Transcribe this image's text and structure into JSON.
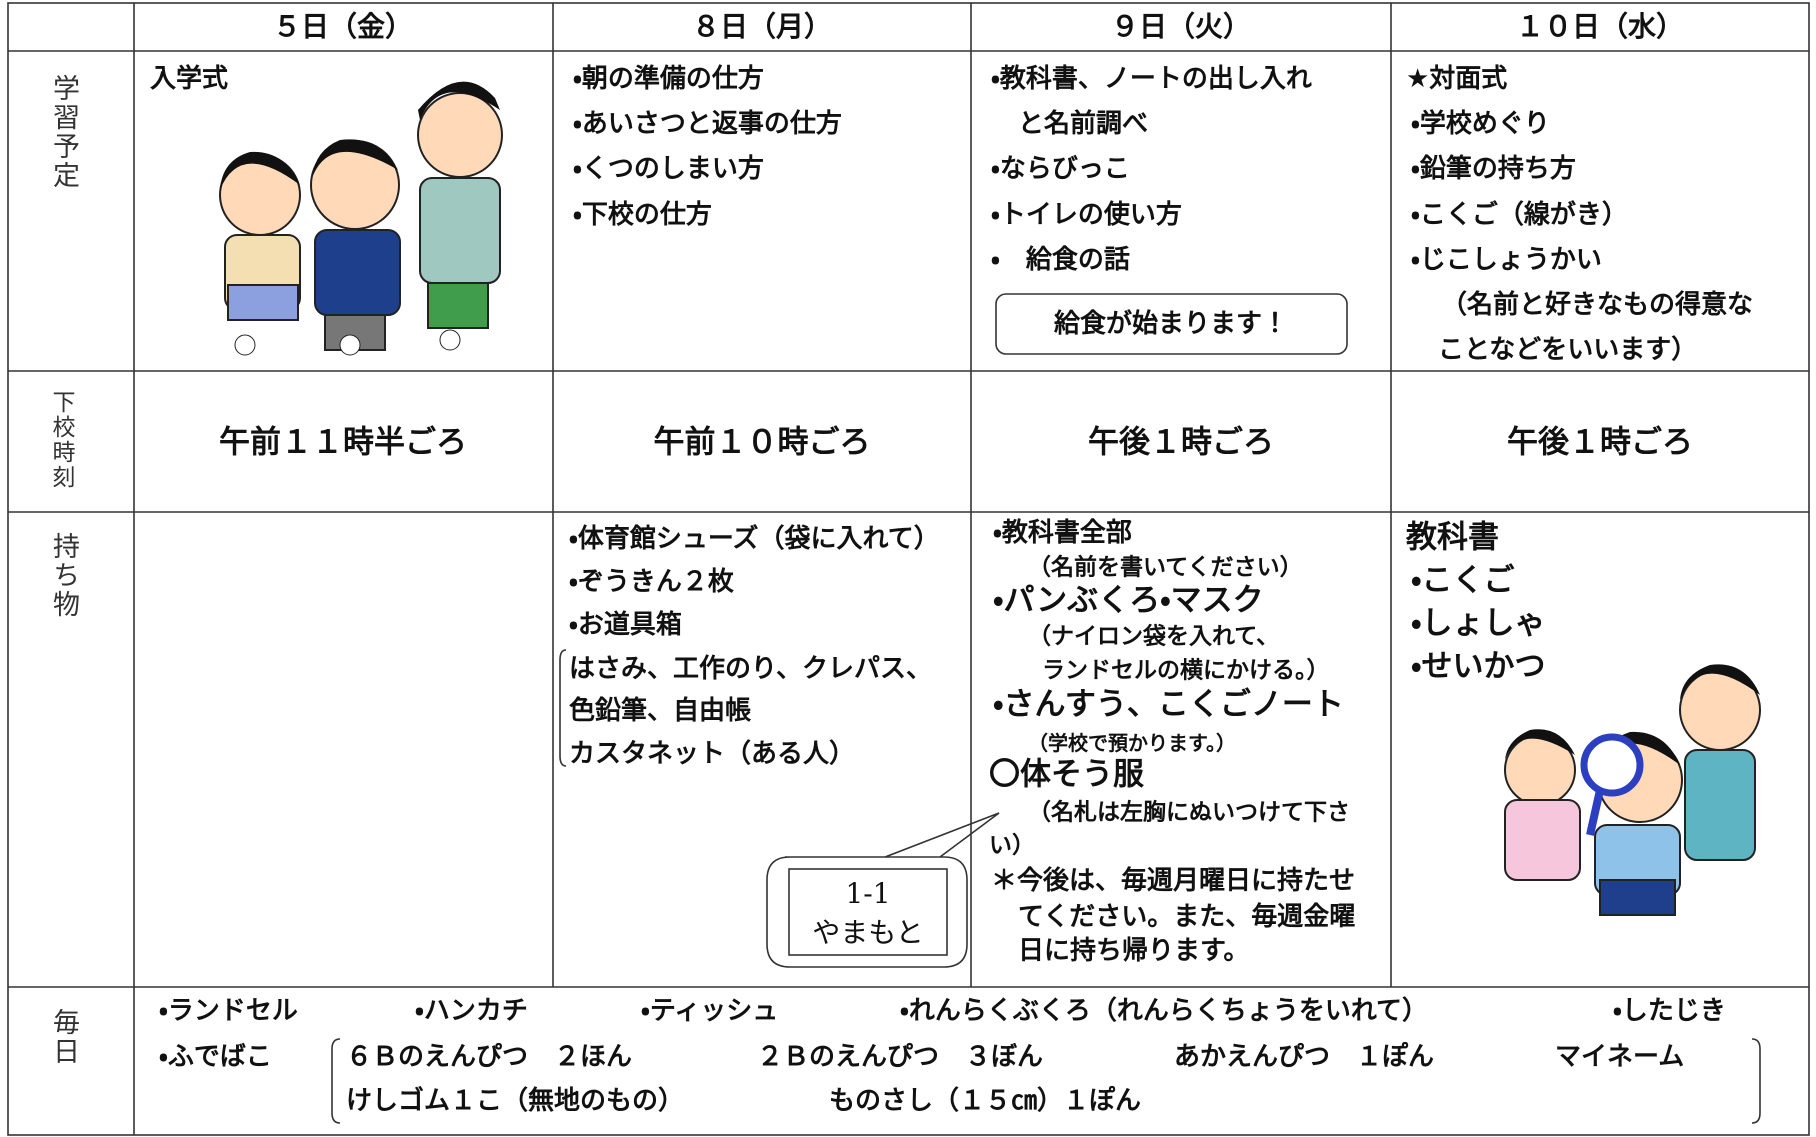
{
  "header": {
    "days": [
      "５日（金）",
      "８日（月）",
      "９日（火）",
      "１０日（水）"
    ]
  },
  "schedule": {
    "label": "学習予定",
    "fri": [
      "入学式"
    ],
    "mon": [
      "・朝の準備の仕方",
      "・あいさつと返事の仕方",
      "・くつのしまい方",
      "・下校の仕方"
    ],
    "tue": [
      "・教科書、ノートの出し入れ",
      "と名前調べ",
      "・ならびっこ",
      "・トイレの使い方",
      "・　給食の話"
    ],
    "tue_notice": "給食が始まります！",
    "wed": [
      "★対面式",
      "・学校めぐり",
      "・鉛筆の持ち方",
      "・こくご（線がき）",
      "・じこしょうかい",
      "（名前と好きなもの得意な",
      "ことなどをいいます）"
    ]
  },
  "dismissal": {
    "label": "下校時刻",
    "fri": "午前１１時半ごろ",
    "mon": "午前１０時ごろ",
    "tue": "午後１時ごろ",
    "wed": "午後１時ごろ"
  },
  "belongings": {
    "label": "持ち物",
    "mon": [
      "・体育館シューズ（袋に入れて）",
      "・ぞうきん２枚",
      "・お道具箱",
      "はさみ、工作のり、クレパス、",
      "色鉛筆、自由帳",
      "カスタネット（ある人）"
    ],
    "tue": [
      "・教科書全部",
      "（名前を書いてください）",
      "・パンぶくろ・マスク",
      "（ナイロン袋を入れて、",
      "ランドセルの横にかける。）",
      "・さんすう、こくごノート",
      "（学校で預かります。）",
      "〇体そう服",
      "（名札は左胸にぬいつけて下さ",
      "い）",
      "＊今後は、毎週月曜日に持たせ",
      "てください。また、毎週金曜",
      "日に持ち帰ります。"
    ],
    "wed": [
      "教科書",
      "・こくご",
      "・しょしゃ",
      "・せいかつ"
    ],
    "note": [
      "1-1",
      "やまもと"
    ]
  },
  "daily": {
    "label": "毎日",
    "items": [
      "・ランドセル",
      "・ハンカチ",
      "・ティッシュ",
      "・れんらくぶくろ（れんらくちょうをいれて）",
      "・したじき"
    ],
    "pencil_case": "・ふでばこ",
    "pencil_case_items": [
      "６Ｂのえんぴつ　２ほん",
      "２Ｂのえんぴつ　３ぼん",
      "あかえんぴつ　１ぽん",
      "マイネーム",
      "けしゴム１こ（無地のもの）",
      "ものさし（１５㎝）１ぽん"
    ]
  }
}
